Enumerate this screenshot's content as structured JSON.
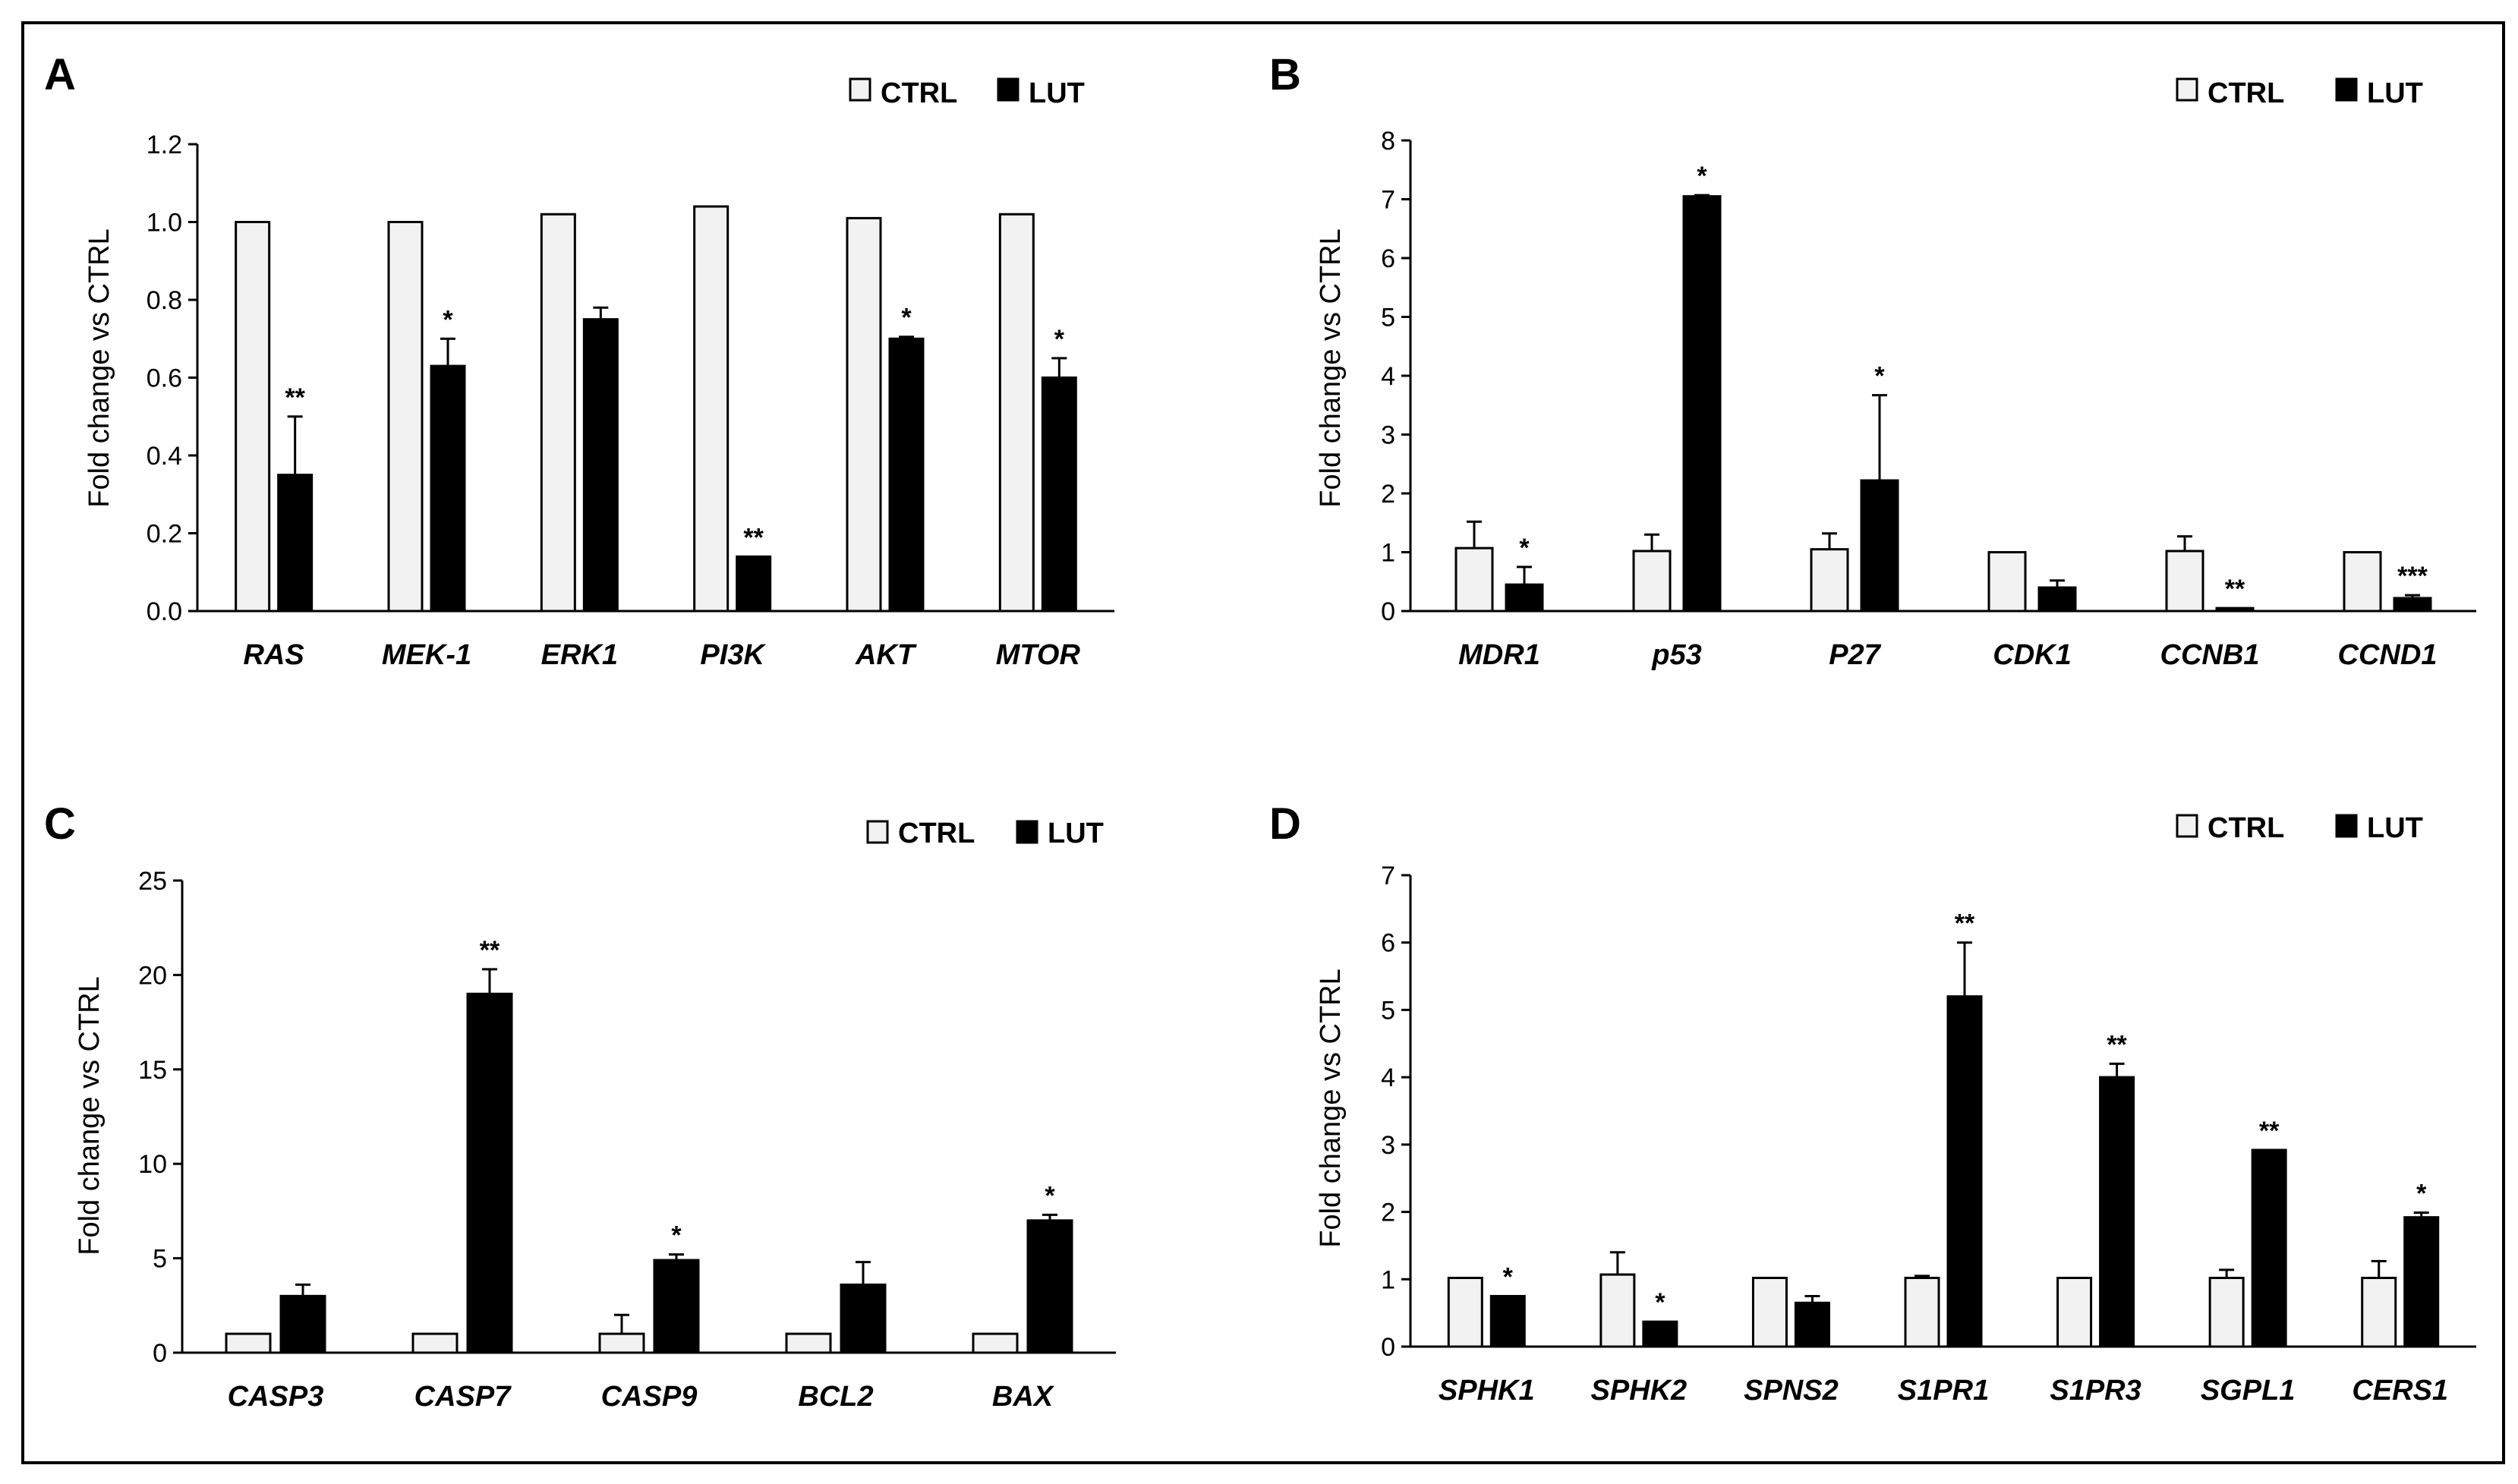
{
  "figure": {
    "legend": {
      "ctrl_label": "CTRL",
      "lut_label": "LUT"
    },
    "colors": {
      "ctrl_fill": "#f2f2f2",
      "lut_fill": "#000000",
      "outline": "#000000"
    }
  },
  "chart_data": [
    {
      "panel": "A",
      "type": "bar",
      "ylabel": "Fold change vs CTRL",
      "ylim": [
        0,
        1.2
      ],
      "yticks": [
        0,
        0.2,
        0.4,
        0.6,
        0.8,
        1.0,
        1.2
      ],
      "ytick_labels": [
        "0.0",
        "0.2",
        "0.4",
        "0.6",
        "0.8",
        "1.0",
        "1.2"
      ],
      "categories": [
        "RAS",
        "MEK-1",
        "ERK1",
        "PI3K",
        "AKT",
        "MTOR"
      ],
      "legend_position": "top-right",
      "series": [
        {
          "name": "CTRL",
          "values": [
            1.0,
            1.0,
            1.02,
            1.04,
            1.01,
            1.02
          ],
          "errors": [
            0.0,
            0.0,
            0.0,
            0.0,
            0.0,
            0.0
          ],
          "significance": [
            "",
            "",
            "",
            "",
            "",
            ""
          ]
        },
        {
          "name": "LUT",
          "values": [
            0.35,
            0.63,
            0.75,
            0.14,
            0.7,
            0.6
          ],
          "errors": [
            0.15,
            0.07,
            0.03,
            0.0,
            0.005,
            0.05
          ],
          "significance": [
            "**",
            "*",
            "",
            "**",
            "*",
            "*"
          ]
        }
      ]
    },
    {
      "panel": "B",
      "type": "bar",
      "ylabel": "Fold change vs CTRL",
      "ylim": [
        0,
        8
      ],
      "yticks": [
        0,
        1,
        2,
        3,
        4,
        5,
        6,
        7,
        8
      ],
      "ytick_labels": [
        "0",
        "1",
        "2",
        "3",
        "4",
        "5",
        "6",
        "7",
        "8"
      ],
      "categories": [
        "MDR1",
        "p53",
        "P27",
        "CDK1",
        "CCNB1",
        "CCND1"
      ],
      "legend_position": "top-right",
      "series": [
        {
          "name": "CTRL",
          "values": [
            1.07,
            1.02,
            1.05,
            1.0,
            1.02,
            1.0
          ],
          "errors": [
            0.45,
            0.28,
            0.27,
            0.0,
            0.25,
            0.0
          ],
          "significance": [
            "",
            "",
            "",
            "",
            "",
            ""
          ]
        },
        {
          "name": "LUT",
          "values": [
            0.45,
            7.05,
            2.22,
            0.4,
            0.05,
            0.22
          ],
          "errors": [
            0.3,
            0.02,
            1.45,
            0.12,
            0.0,
            0.05
          ],
          "significance": [
            "*",
            "*",
            "*",
            "",
            "**",
            "***"
          ]
        }
      ]
    },
    {
      "panel": "C",
      "type": "bar",
      "ylabel": "Fold change vs CTRL",
      "ylim": [
        0,
        25
      ],
      "yticks": [
        0,
        5,
        10,
        15,
        20,
        25
      ],
      "ytick_labels": [
        "0",
        "5",
        "10",
        "15",
        "20",
        "25"
      ],
      "categories": [
        "CASP3",
        "CASP7",
        "CASP9",
        "BCL2",
        "BAX"
      ],
      "legend_position": "top-right",
      "series": [
        {
          "name": "CTRL",
          "values": [
            1.0,
            1.0,
            1.0,
            1.0,
            1.0
          ],
          "errors": [
            0.0,
            0.0,
            1.0,
            0.0,
            0.0
          ],
          "significance": [
            "",
            "",
            "",
            "",
            ""
          ]
        },
        {
          "name": "LUT",
          "values": [
            3.0,
            19.0,
            4.9,
            3.6,
            7.0
          ],
          "errors": [
            0.6,
            1.3,
            0.3,
            1.2,
            0.3
          ],
          "significance": [
            "",
            "**",
            "*",
            "",
            "*"
          ]
        }
      ]
    },
    {
      "panel": "D",
      "type": "bar",
      "ylabel": "Fold change vs CTRL",
      "ylim": [
        0,
        7
      ],
      "yticks": [
        0,
        1,
        2,
        3,
        4,
        5,
        6,
        7
      ],
      "ytick_labels": [
        "0",
        "1",
        "2",
        "3",
        "4",
        "5",
        "6",
        "7"
      ],
      "categories": [
        "SPHK1",
        "SPHK2",
        "SPNS2",
        "S1PR1",
        "S1PR3",
        "SGPL1",
        "CERS1"
      ],
      "legend_position": "top-right",
      "series": [
        {
          "name": "CTRL",
          "values": [
            1.02,
            1.07,
            1.02,
            1.02,
            1.02,
            1.02,
            1.02
          ],
          "errors": [
            0.0,
            0.33,
            0.0,
            0.03,
            0.0,
            0.12,
            0.25
          ],
          "significance": [
            "",
            "",
            "",
            "",
            "",
            "",
            ""
          ]
        },
        {
          "name": "LUT",
          "values": [
            0.75,
            0.37,
            0.65,
            5.2,
            4.0,
            2.92,
            1.92
          ],
          "errors": [
            0.0,
            0.0,
            0.1,
            0.8,
            0.2,
            0.0,
            0.07
          ],
          "significance": [
            "*",
            "*",
            "",
            "**",
            "**",
            "**",
            "*"
          ]
        }
      ]
    }
  ]
}
